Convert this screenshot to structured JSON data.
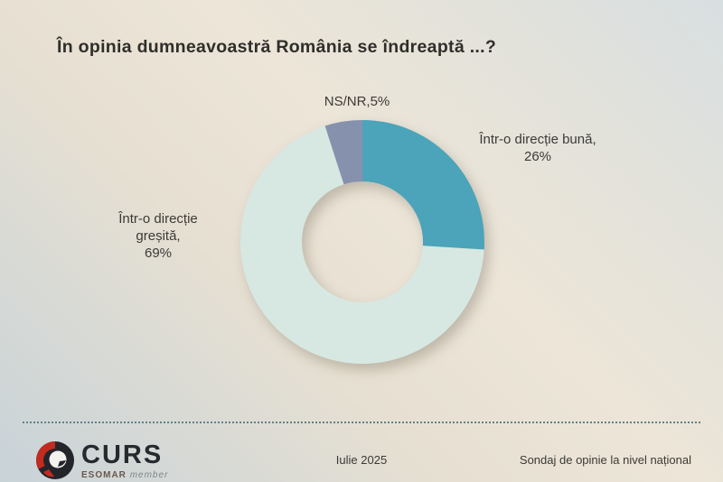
{
  "title": "În opinia dumneavoastră România se îndreaptă ...?",
  "chart_data": {
    "type": "pie",
    "subtype": "donut",
    "start_angle_deg": 0,
    "direction": "clockwise",
    "hole_ratio": 0.5,
    "slices": [
      {
        "name": "Într-o direcție bună",
        "value_pct": 26,
        "color": "#4BA4B9"
      },
      {
        "name": "Într-o direcție greșită",
        "value_pct": 69,
        "color": "#D7E8E2"
      },
      {
        "name": "NS/NR",
        "value_pct": 5,
        "color": "#8691AE"
      }
    ],
    "data_labels": [
      "Într-o direcție bună, 26%",
      "Într-o direcție greșită, 69%",
      "NS/NR,5%"
    ],
    "legend": "none"
  },
  "labels": {
    "nsnr": "NS/NR,5%",
    "buna_l1": "Într-o direcție bună,",
    "buna_l2": "26%",
    "gresita_l1": "Într-o direcție",
    "gresita_l2": "greșită,",
    "gresita_l3": "69%"
  },
  "footer": {
    "brand": "CURS",
    "brand_sub_1": "ESOMAR",
    "brand_sub_2": "member",
    "date": "Iulie 2025",
    "note": "Sondaj de opinie la nivel național"
  },
  "colors": {
    "slice_buna": "#4BA4B9",
    "slice_gresita": "#D7E8E2",
    "slice_nsnr": "#8691AE",
    "divider": "#5E8289",
    "logo_red": "#C22B20",
    "logo_dark": "#23252B"
  }
}
